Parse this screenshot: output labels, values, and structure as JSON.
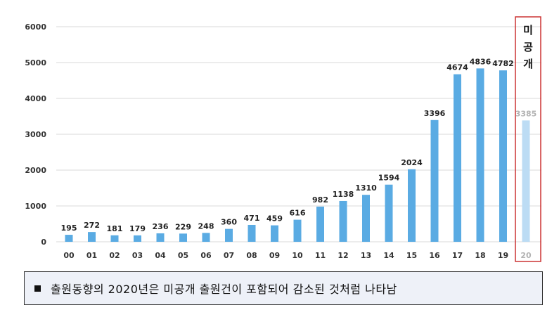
{
  "chart_data": {
    "type": "bar",
    "categories": [
      "00",
      "01",
      "02",
      "03",
      "04",
      "05",
      "06",
      "07",
      "08",
      "09",
      "10",
      "11",
      "12",
      "13",
      "14",
      "15",
      "16",
      "17",
      "18",
      "19",
      "20"
    ],
    "values": [
      195,
      272,
      181,
      179,
      236,
      229,
      248,
      360,
      471,
      459,
      616,
      982,
      1138,
      1310,
      1594,
      2024,
      3396,
      4674,
      4836,
      4782,
      3385
    ],
    "unpublished_category": "20",
    "ylim": [
      0,
      6000
    ],
    "yticks": [
      0,
      1000,
      2000,
      3000,
      4000,
      5000,
      6000
    ],
    "grid": true,
    "annotation": "미공개",
    "colors": {
      "bar": "#5aabe3",
      "bar_unpublished": "#bcdcf4",
      "highlight_border": "#cc3333",
      "grid": "#d9d9d9",
      "faded_label": "#b3b3b3"
    }
  },
  "caption": {
    "text": "출원동향의 2020년은 미공개 출원건이 포함되어 감소된 것처럼 나타남",
    "bullet_icon": "square-bullet-icon"
  }
}
